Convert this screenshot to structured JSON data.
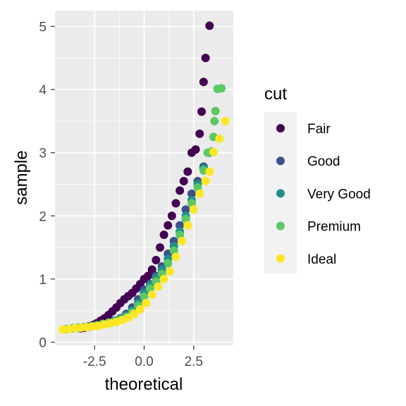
{
  "chart_data": {
    "type": "scatter",
    "subtype": "qq-plot",
    "xlabel": "theoretical",
    "ylabel": "sample",
    "xlim": [
      -4.5,
      4.5
    ],
    "ylim": [
      -0.05,
      5.25
    ],
    "x_ticks": [
      -2.5,
      0.0,
      2.5
    ],
    "x_tick_labels": [
      "-2.5",
      "0.0",
      "2.5"
    ],
    "y_ticks": [
      0,
      1,
      2,
      3,
      4,
      5
    ],
    "y_tick_labels": [
      "0",
      "1",
      "2",
      "3",
      "4",
      "5"
    ],
    "grid": true,
    "background": "#ebebeb",
    "legend": {
      "title": "cut",
      "position": "right"
    },
    "series": [
      {
        "name": "Fair",
        "color": "#440154",
        "x": [
          -3.2,
          -3.0,
          -2.8,
          -2.6,
          -2.4,
          -2.2,
          -2.0,
          -1.8,
          -1.6,
          -1.4,
          -1.2,
          -1.0,
          -0.8,
          -0.6,
          -0.4,
          -0.2,
          0.0,
          0.2,
          0.4,
          0.6,
          0.8,
          1.0,
          1.2,
          1.4,
          1.6,
          1.8,
          2.0,
          2.2,
          2.4,
          2.6,
          2.8,
          2.9,
          3.0,
          3.1,
          3.3
        ],
        "y": [
          0.22,
          0.23,
          0.25,
          0.27,
          0.3,
          0.34,
          0.38,
          0.43,
          0.49,
          0.55,
          0.62,
          0.68,
          0.73,
          0.78,
          0.85,
          0.92,
          1.0,
          1.05,
          1.15,
          1.3,
          1.5,
          1.7,
          1.85,
          2.0,
          2.2,
          2.4,
          2.55,
          2.7,
          3.0,
          3.05,
          3.3,
          3.65,
          4.12,
          4.5,
          5.01
        ]
      },
      {
        "name": "Good",
        "color": "#3b528b",
        "x": [
          -3.6,
          -3.3,
          -3.0,
          -2.7,
          -2.4,
          -2.1,
          -1.8,
          -1.5,
          -1.2,
          -0.9,
          -0.6,
          -0.3,
          0.0,
          0.3,
          0.6,
          0.9,
          1.2,
          1.5,
          1.8,
          2.1,
          2.4,
          2.7,
          3.0
        ],
        "y": [
          0.22,
          0.23,
          0.24,
          0.25,
          0.27,
          0.29,
          0.31,
          0.34,
          0.38,
          0.45,
          0.55,
          0.68,
          0.83,
          0.92,
          1.05,
          1.2,
          1.4,
          1.6,
          1.85,
          2.1,
          2.35,
          2.55,
          2.78
        ]
      },
      {
        "name": "Very Good",
        "color": "#21908c",
        "x": [
          -3.9,
          -3.6,
          -3.3,
          -3.0,
          -2.7,
          -2.4,
          -2.1,
          -1.8,
          -1.5,
          -1.2,
          -0.9,
          -0.6,
          -0.3,
          0.0,
          0.3,
          0.6,
          0.9,
          1.2,
          1.5,
          1.8,
          2.1,
          2.4,
          2.7,
          3.0,
          3.3
        ],
        "y": [
          0.21,
          0.22,
          0.23,
          0.24,
          0.25,
          0.27,
          0.29,
          0.31,
          0.34,
          0.37,
          0.42,
          0.5,
          0.62,
          0.78,
          0.9,
          1.02,
          1.15,
          1.32,
          1.52,
          1.75,
          2.0,
          2.25,
          2.5,
          2.75,
          3.0
        ]
      },
      {
        "name": "Premium",
        "color": "#5dc863",
        "x": [
          -3.9,
          -3.6,
          -3.3,
          -3.0,
          -2.7,
          -2.4,
          -2.1,
          -1.8,
          -1.5,
          -1.2,
          -0.9,
          -0.6,
          -0.3,
          0.0,
          0.3,
          0.6,
          0.9,
          1.2,
          1.5,
          1.8,
          2.1,
          2.4,
          2.7,
          3.0,
          3.2,
          3.4,
          3.5,
          3.55,
          3.6,
          3.7,
          3.9
        ],
        "y": [
          0.21,
          0.22,
          0.23,
          0.24,
          0.25,
          0.27,
          0.29,
          0.31,
          0.33,
          0.36,
          0.4,
          0.47,
          0.58,
          0.72,
          0.85,
          0.96,
          1.08,
          1.25,
          1.45,
          1.7,
          1.95,
          2.2,
          2.45,
          2.72,
          3.0,
          3.02,
          3.25,
          3.5,
          3.66,
          4.01,
          4.02
        ]
      },
      {
        "name": "Ideal",
        "color": "#fde725",
        "x": [
          -4.1,
          -3.8,
          -3.5,
          -3.2,
          -2.9,
          -2.6,
          -2.3,
          -2.0,
          -1.7,
          -1.4,
          -1.1,
          -0.8,
          -0.5,
          -0.2,
          0.1,
          0.4,
          0.7,
          1.0,
          1.3,
          1.6,
          1.9,
          2.2,
          2.5,
          2.8,
          3.1,
          3.3,
          3.5,
          3.8,
          4.1
        ],
        "y": [
          0.2,
          0.21,
          0.22,
          0.23,
          0.24,
          0.25,
          0.26,
          0.28,
          0.3,
          0.32,
          0.35,
          0.39,
          0.45,
          0.52,
          0.62,
          0.75,
          0.88,
          1.0,
          1.12,
          1.35,
          1.6,
          1.85,
          2.1,
          2.35,
          2.55,
          2.7,
          3.01,
          3.22,
          3.5
        ]
      }
    ]
  }
}
